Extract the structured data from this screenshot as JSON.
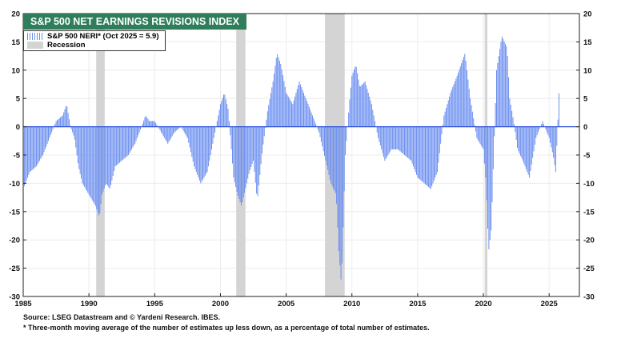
{
  "chart_data": {
    "type": "bar",
    "title": "S&P 500 NET EARNINGS REVISIONS INDEX",
    "series": [
      {
        "name": "S&P 500 NERI* (Oct 2025 = 5.9)",
        "color": "#6b8ff0",
        "x": [
          1985.0,
          1985.5,
          1986.0,
          1986.5,
          1987.0,
          1987.5,
          1988.0,
          1988.3,
          1988.6,
          1988.9,
          1989.2,
          1989.5,
          1990.0,
          1990.5,
          1990.8,
          1991.0,
          1991.3,
          1991.6,
          1992.0,
          1992.5,
          1993.0,
          1993.5,
          1994.0,
          1994.3,
          1994.6,
          1995.0,
          1995.5,
          1996.0,
          1996.5,
          1997.0,
          1997.5,
          1998.0,
          1998.5,
          1999.0,
          1999.5,
          2000.0,
          2000.3,
          2000.6,
          2001.0,
          2001.3,
          2001.6,
          2001.9,
          2002.2,
          2002.5,
          2002.8,
          2003.2,
          2003.6,
          2004.0,
          2004.3,
          2004.6,
          2005.0,
          2005.5,
          2006.0,
          2006.5,
          2007.0,
          2007.5,
          2008.0,
          2008.4,
          2008.8,
          2009.0,
          2009.2,
          2009.5,
          2009.8,
          2010.0,
          2010.3,
          2010.6,
          2011.0,
          2011.5,
          2012.0,
          2012.5,
          2013.0,
          2013.5,
          2014.0,
          2014.5,
          2015.0,
          2015.5,
          2016.0,
          2016.5,
          2017.0,
          2017.5,
          2018.0,
          2018.3,
          2018.6,
          2019.0,
          2019.5,
          2020.0,
          2020.2,
          2020.4,
          2020.6,
          2021.0,
          2021.4,
          2021.8,
          2022.0,
          2022.3,
          2022.6,
          2023.0,
          2023.5,
          2024.0,
          2024.5,
          2025.0,
          2025.3,
          2025.5,
          2025.75
        ],
        "values": [
          -11,
          -8,
          -7,
          -5,
          -2,
          1,
          2,
          4,
          0,
          -2,
          -7,
          -10,
          -12,
          -14,
          -16,
          -12,
          -10,
          -11,
          -7,
          -6,
          -5,
          -3,
          0,
          2,
          1,
          1,
          -1,
          -3,
          -1,
          0,
          -2,
          -7,
          -10,
          -8,
          -2,
          4,
          6,
          3,
          -9,
          -12,
          -14,
          -11,
          -8,
          -6,
          -13,
          -4,
          3,
          8,
          13,
          11,
          6,
          4,
          8,
          5,
          2,
          -1,
          -6,
          -10,
          -12,
          -22,
          -28,
          -5,
          4,
          9,
          11,
          7,
          8,
          4,
          -2,
          -6,
          -4,
          -4,
          -5,
          -6,
          -9,
          -10,
          -11,
          -8,
          2,
          6,
          9,
          11,
          13,
          5,
          -2,
          -4,
          -10,
          -22,
          -18,
          10,
          16,
          14,
          5,
          1,
          -4,
          -6,
          -9,
          -2,
          1,
          -2,
          -5,
          -8,
          5.9
        ]
      }
    ],
    "recessions": [
      [
        1990.55,
        1991.2
      ],
      [
        2001.2,
        2001.9
      ],
      [
        2007.95,
        2009.45
      ],
      [
        2020.1,
        2020.3
      ]
    ],
    "recession_label": "Recession",
    "xlabel": "",
    "ylabel": "",
    "xlim": [
      1985,
      2027.3
    ],
    "ylim": [
      -30,
      20
    ],
    "x_ticks": [
      1985,
      1990,
      1995,
      2000,
      2005,
      2010,
      2015,
      2020,
      2025
    ],
    "y_ticks": [
      20,
      15,
      10,
      5,
      0,
      -5,
      -10,
      -15,
      -20,
      -25,
      -30
    ],
    "grid": true,
    "legend_position": "top-left"
  },
  "source_line": "Source: LSEG Datastream and © Yardeni Research. IBES.",
  "footnote": "* Three-month moving average of the number of estimates up less down, as a percentage of total number of estimates."
}
